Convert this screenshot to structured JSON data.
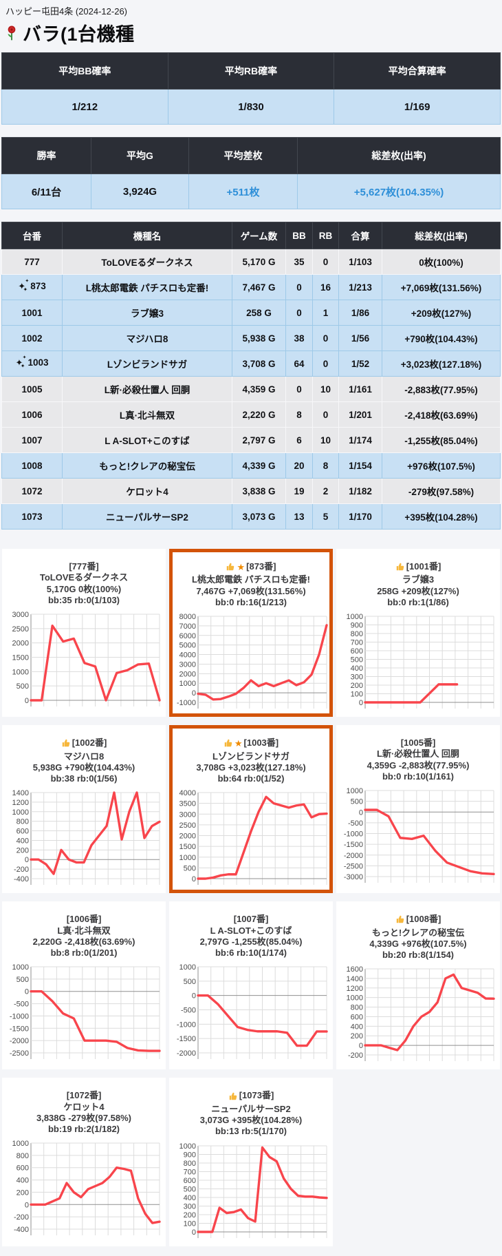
{
  "page": {
    "site_label": "ハッピー屯田4条 (2024-12-26)",
    "title": "バラ(1台機種",
    "title_icon": "rose-icon"
  },
  "colors": {
    "header_dark": "#2b2e36",
    "row_blue": "#c8e0f4",
    "row_gray": "#e8e8ea",
    "accent_blue": "#2e8fd8",
    "highlight_orange": "#d35309",
    "chart_line_red": "#f8454c"
  },
  "summary_probability": {
    "headers": [
      "平均BB確率",
      "平均RB確率",
      "平均合算確率"
    ],
    "values": [
      "1/212",
      "1/830",
      "1/169"
    ]
  },
  "summary_results": {
    "headers": [
      "勝率",
      "平均G",
      "平均差枚",
      "総差枚(出率)"
    ],
    "values": [
      "6/11台",
      "3,924G",
      "+511枚",
      "+5,627枚(104.35%)"
    ],
    "blue_value_indices": [
      2,
      3
    ]
  },
  "machine_table": {
    "headers": [
      "台番",
      "機種名",
      "ゲーム数",
      "BB",
      "RB",
      "合算",
      "総差枚(出率)"
    ],
    "rows": [
      {
        "no": "777",
        "sparkle": false,
        "name": "ToLOVEるダークネス",
        "games": "5,170 G",
        "bb": "35",
        "rb": "0",
        "rate": "1/103",
        "diff": "0枚(100%)",
        "positive": false
      },
      {
        "no": "873",
        "sparkle": true,
        "name": "L桃太郎電鉄 パチスロも定番!",
        "games": "7,467 G",
        "bb": "0",
        "rb": "16",
        "rate": "1/213",
        "diff": "+7,069枚(131.56%)",
        "positive": true
      },
      {
        "no": "1001",
        "sparkle": false,
        "name": "ラブ嬢3",
        "games": "258 G",
        "bb": "0",
        "rb": "1",
        "rate": "1/86",
        "diff": "+209枚(127%)",
        "positive": true
      },
      {
        "no": "1002",
        "sparkle": false,
        "name": "マジハロ8",
        "games": "5,938 G",
        "bb": "38",
        "rb": "0",
        "rate": "1/56",
        "diff": "+790枚(104.43%)",
        "positive": true
      },
      {
        "no": "1003",
        "sparkle": true,
        "name": "Lゾンビランドサガ",
        "games": "3,708 G",
        "bb": "64",
        "rb": "0",
        "rate": "1/52",
        "diff": "+3,023枚(127.18%)",
        "positive": true
      },
      {
        "no": "1005",
        "sparkle": false,
        "name": "L新·必殺仕置人 回胴",
        "games": "4,359 G",
        "bb": "0",
        "rb": "10",
        "rate": "1/161",
        "diff": "-2,883枚(77.95%)",
        "positive": false
      },
      {
        "no": "1006",
        "sparkle": false,
        "name": "L真·北斗無双",
        "games": "2,220 G",
        "bb": "8",
        "rb": "0",
        "rate": "1/201",
        "diff": "-2,418枚(63.69%)",
        "positive": false
      },
      {
        "no": "1007",
        "sparkle": false,
        "name": "L A-SLOT+このすば",
        "games": "2,797 G",
        "bb": "6",
        "rb": "10",
        "rate": "1/174",
        "diff": "-1,255枚(85.04%)",
        "positive": false
      },
      {
        "no": "1008",
        "sparkle": false,
        "name": "もっと!クレアの秘宝伝",
        "games": "4,339 G",
        "bb": "20",
        "rb": "8",
        "rate": "1/154",
        "diff": "+976枚(107.5%)",
        "positive": true
      },
      {
        "no": "1072",
        "sparkle": false,
        "name": "ケロット4",
        "games": "3,838 G",
        "bb": "19",
        "rb": "2",
        "rate": "1/182",
        "diff": "-279枚(97.58%)",
        "positive": false
      },
      {
        "no": "1073",
        "sparkle": false,
        "name": "ニューパルサーSP2",
        "games": "3,073 G",
        "bb": "13",
        "rb": "5",
        "rate": "1/170",
        "diff": "+395枚(104.28%)",
        "positive": true
      }
    ]
  },
  "chart_cards": [
    {
      "thumb": false,
      "star": false,
      "no_label": "[777番]",
      "name": "ToLOVEるダークネス",
      "stats": "5,170G 0枚(100%)",
      "bbrb": "bb:35 rb:0(1/103)",
      "highlighted": false,
      "chart": {
        "type": "line",
        "ymin": 0,
        "ymax": 3000,
        "step": 500,
        "values": [
          0,
          0,
          2600,
          2050,
          2150,
          1300,
          1180,
          0,
          950,
          1050,
          1250,
          1280,
          0
        ]
      }
    },
    {
      "thumb": true,
      "star": true,
      "no_label": "[873番]",
      "name": "L桃太郎電鉄 パチスロも定番!",
      "stats": "7,467G +7,069枚(131.56%)",
      "bbrb": "bb:0 rb:16(1/213)",
      "highlighted": true,
      "chart": {
        "type": "line",
        "ymin": -1000,
        "ymax": 8000,
        "step": 1000,
        "values": [
          -100,
          -200,
          -700,
          -650,
          -400,
          -100,
          500,
          1300,
          700,
          1000,
          700,
          1000,
          1300,
          800,
          1100,
          1900,
          4000,
          7069
        ]
      }
    },
    {
      "thumb": true,
      "star": false,
      "no_label": "[1001番]",
      "name": "ラブ嬢3",
      "stats": "258G +209枚(127%)",
      "bbrb": "bb:0 rb:1(1/86)",
      "highlighted": false,
      "chart": {
        "type": "line",
        "ymin": 0,
        "ymax": 1000,
        "step": 100,
        "values": [
          0,
          0,
          0,
          0,
          209,
          209
        ],
        "slots": 8
      }
    },
    {
      "thumb": true,
      "star": false,
      "no_label": "[1002番]",
      "name": "マジハロ8",
      "stats": "5,938G +790枚(104.43%)",
      "bbrb": "bb:38 rb:0(1/56)",
      "highlighted": false,
      "chart": {
        "type": "line",
        "ymin": -400,
        "ymax": 1400,
        "step": 200,
        "values": [
          0,
          0,
          -100,
          -300,
          200,
          0,
          -60,
          -60,
          300,
          500,
          700,
          1400,
          420,
          1000,
          1400,
          450,
          700,
          790
        ]
      }
    },
    {
      "thumb": true,
      "star": true,
      "no_label": "[1003番]",
      "name": "Lゾンビランドサガ",
      "stats": "3,708G +3,023枚(127.18%)",
      "bbrb": "bb:64 rb:0(1/52)",
      "highlighted": true,
      "chart": {
        "type": "line",
        "ymin": 0,
        "ymax": 4000,
        "step": 500,
        "values": [
          0,
          0,
          50,
          150,
          200,
          200,
          1200,
          2200,
          3100,
          3800,
          3500,
          3400,
          3300,
          3400,
          3450,
          2850,
          3000,
          3023
        ]
      }
    },
    {
      "thumb": false,
      "star": false,
      "no_label": "[1005番]",
      "name": "L新·必殺仕置人 回胴",
      "stats": "4,359G -2,883枚(77.95%)",
      "bbrb": "bb:0 rb:10(1/161)",
      "highlighted": false,
      "chart": {
        "type": "line",
        "ymin": -3000,
        "ymax": 1000,
        "step": 500,
        "values": [
          100,
          100,
          -200,
          -1200,
          -1250,
          -1100,
          -1800,
          -2350,
          -2550,
          -2750,
          -2850,
          -2883
        ]
      }
    },
    {
      "thumb": false,
      "star": false,
      "no_label": "[1006番]",
      "name": "L真·北斗無双",
      "stats": "2,220G -2,418枚(63.69%)",
      "bbrb": "bb:8 rb:0(1/201)",
      "highlighted": false,
      "chart": {
        "type": "line",
        "ymin": -2500,
        "ymax": 1000,
        "step": 500,
        "values": [
          0,
          0,
          -400,
          -900,
          -1100,
          -2000,
          -2000,
          -2000,
          -2050,
          -2300,
          -2400,
          -2418,
          -2418
        ]
      }
    },
    {
      "thumb": false,
      "star": false,
      "no_label": "[1007番]",
      "name": "L A-SLOT+このすば",
      "stats": "2,797G -1,255枚(85.04%)",
      "bbrb": "bb:6 rb:10(1/174)",
      "highlighted": false,
      "chart": {
        "type": "line",
        "ymin": -2000,
        "ymax": 1000,
        "step": 500,
        "values": [
          0,
          0,
          -300,
          -700,
          -1100,
          -1200,
          -1250,
          -1250,
          -1250,
          -1300,
          -1750,
          -1750,
          -1255,
          -1255
        ]
      }
    },
    {
      "thumb": true,
      "star": false,
      "no_label": "[1008番]",
      "name": "もっと!クレアの秘宝伝",
      "stats": "4,339G +976枚(107.5%)",
      "bbrb": "bb:20 rb:8(1/154)",
      "highlighted": false,
      "chart": {
        "type": "line",
        "ymin": -200,
        "ymax": 1600,
        "step": 200,
        "values": [
          0,
          0,
          0,
          -50,
          -100,
          100,
          400,
          600,
          700,
          900,
          1400,
          1480,
          1200,
          1150,
          1100,
          980,
          976
        ]
      }
    },
    {
      "thumb": false,
      "star": false,
      "no_label": "[1072番]",
      "name": "ケロット4",
      "stats": "3,838G -279枚(97.58%)",
      "bbrb": "bb:19 rb:2(1/182)",
      "highlighted": false,
      "chart": {
        "type": "line",
        "ymin": -400,
        "ymax": 1000,
        "step": 200,
        "values": [
          0,
          0,
          0,
          50,
          100,
          350,
          200,
          120,
          250,
          300,
          350,
          450,
          600,
          580,
          550,
          100,
          -150,
          -300,
          -279
        ]
      }
    },
    {
      "thumb": true,
      "star": false,
      "no_label": "[1073番]",
      "name": "ニューパルサーSP2",
      "stats": "3,073G +395枚(104.28%)",
      "bbrb": "bb:13 rb:5(1/170)",
      "highlighted": false,
      "chart": {
        "type": "line",
        "ymin": 0,
        "ymax": 1000,
        "step": 100,
        "values": [
          0,
          0,
          0,
          280,
          220,
          230,
          260,
          160,
          120,
          980,
          870,
          820,
          620,
          500,
          420,
          410,
          410,
          400,
          395
        ]
      }
    }
  ]
}
